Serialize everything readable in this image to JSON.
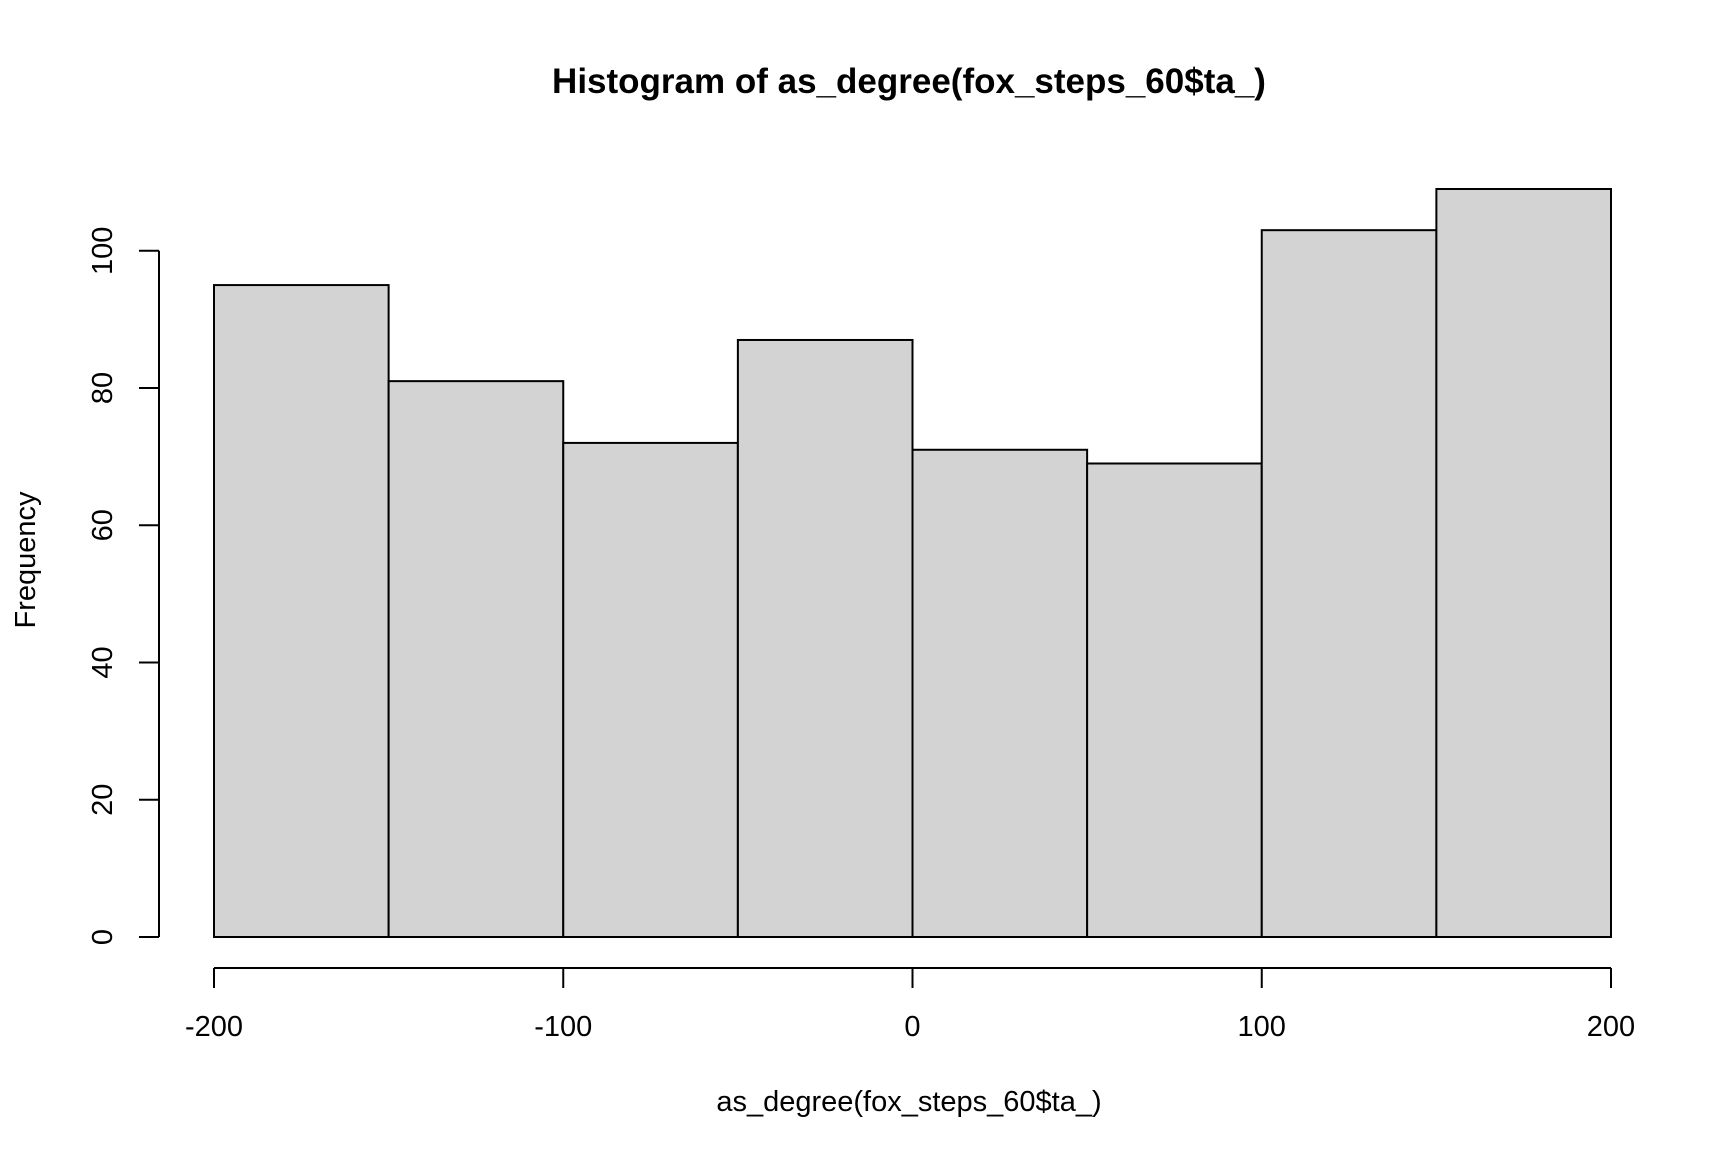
{
  "chart_data": {
    "type": "bar",
    "title": "Histogram of as_degree(fox_steps_60$ta_)",
    "xlabel": "as_degree(fox_steps_60$ta_)",
    "ylabel": "Frequency",
    "bins": [
      {
        "start": -200,
        "end": -150,
        "count": 95
      },
      {
        "start": -150,
        "end": -100,
        "count": 81
      },
      {
        "start": -100,
        "end": -50,
        "count": 72
      },
      {
        "start": -50,
        "end": 0,
        "count": 87
      },
      {
        "start": 0,
        "end": 50,
        "count": 71
      },
      {
        "start": 50,
        "end": 100,
        "count": 69
      },
      {
        "start": 100,
        "end": 150,
        "count": 103
      },
      {
        "start": 150,
        "end": 200,
        "count": 109
      }
    ],
    "xlim": [
      -200,
      200
    ],
    "ylim": [
      0,
      109
    ],
    "x_ticks": [
      -200,
      -100,
      0,
      100,
      200
    ],
    "y_ticks": [
      0,
      20,
      40,
      60,
      80,
      100
    ],
    "bar_fill": "#d3d3d3",
    "bar_stroke": "#000000",
    "grid": false,
    "legend": "none"
  }
}
